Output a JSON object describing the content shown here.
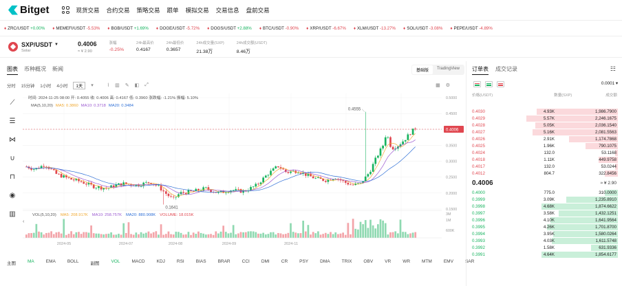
{
  "brand": {
    "name": "Bitget"
  },
  "nav": [
    "现货交易",
    "合约交易",
    "策略交易",
    "跟单",
    "模拟交易",
    "交易信息",
    "盘前交易"
  ],
  "tickers": [
    {
      "sym": "ZRC/USDT",
      "chg": "+0.00%",
      "dir": "up"
    },
    {
      "sym": "MEMEFI/USDT",
      "chg": "-5.53%",
      "dir": "down"
    },
    {
      "sym": "BGB/USDT",
      "chg": "+1.69%",
      "dir": "up"
    },
    {
      "sym": "DOGE/USDT",
      "chg": "-5.72%",
      "dir": "down"
    },
    {
      "sym": "DOGS/USDT",
      "chg": "+2.88%",
      "dir": "up"
    },
    {
      "sym": "BTC/USDT",
      "chg": "-0.90%",
      "dir": "down"
    },
    {
      "sym": "XRP/USDT",
      "chg": "-6.67%",
      "dir": "down"
    },
    {
      "sym": "XLM/USDT",
      "chg": "-13.27%",
      "dir": "down"
    },
    {
      "sym": "SOL/USDT",
      "chg": "-3.08%",
      "dir": "down"
    },
    {
      "sym": "PEPE/USDT",
      "chg": "-4.89%",
      "dir": "down"
    }
  ],
  "pair": {
    "name": "SXP/USDT",
    "sub": "Solar",
    "price": "0.4006",
    "fiat": "≈ ¥ 2.90",
    "stats": [
      {
        "lbl": "涨幅",
        "val": "-0.25%",
        "cls": "down"
      },
      {
        "lbl": "24h最高价",
        "val": "0.4167",
        "cls": ""
      },
      {
        "lbl": "24h最低价",
        "val": "0.3657",
        "cls": ""
      },
      {
        "lbl": "24h成交量(SXP)",
        "val": "21.38万",
        "cls": ""
      },
      {
        "lbl": "24h成交额(USDT)",
        "val": "8.46万",
        "cls": ""
      }
    ]
  },
  "chart_tabs": [
    "图表",
    "币种概况",
    "新闻"
  ],
  "view_switch": [
    "基础版",
    "TradingView"
  ],
  "intervals": [
    "分时",
    "15分钟",
    "1小时",
    "4小时",
    "1天"
  ],
  "selected_interval": "1天",
  "ohlc_text": "时间: 2024-11-25 08:00   开: 0.4055   收: 0.4006   高: 0.4167   低: 0.3960   涨跌幅: -1.21%   振幅: 5.10%",
  "ma_line": {
    "label": "MA(5,10,20)",
    "ma5": "MA5: 0.3860",
    "ma10": "MA10: 0.3718",
    "ma20": "MA20: 0.3484"
  },
  "vol_line": {
    "label": "VOL(5,10,20)",
    "ma5": "MA5: 208.917K",
    "ma10": "MA10: 258.757K",
    "ma20": "MA20: 880.908K",
    "vol": "VOLUME: 18.015K"
  },
  "annotations": {
    "high": "0.4555",
    "low": "0.1641",
    "current": "0.4006"
  },
  "price_axis": [
    "0.5000",
    "0.4500",
    "0.4000",
    "0.3500",
    "0.3000",
    "0.2500",
    "0.2000",
    "0.1500"
  ],
  "vol_axis": [
    "3M",
    "1M",
    "600K"
  ],
  "date_axis": [
    "2024-05",
    "2024-07",
    "2024-08",
    "2024-09",
    "2024-11"
  ],
  "indicators": [
    "主图",
    "MA",
    "EMA",
    "BOLL",
    "副图",
    "VOL",
    "MACD",
    "KDJ",
    "RSI",
    "BIAS",
    "BRAR",
    "CCI",
    "DMI",
    "CR",
    "PSY",
    "DMA",
    "TRIX",
    "OBV",
    "VR",
    "WR",
    "MTM",
    "EMV",
    "SAR"
  ],
  "order_tabs": [
    "订单表",
    "成交记录"
  ],
  "precision": "0.0001",
  "ob_head": [
    "价格(USDT)",
    "数量(SXP)",
    "成交额"
  ],
  "asks": [
    {
      "p": "0.4030",
      "q": "4.93K",
      "t": "1,986.7900",
      "w": 0.55
    },
    {
      "p": "0.4029",
      "q": "5.57K",
      "t": "2,246.1675",
      "w": 0.62
    },
    {
      "p": "0.4028",
      "q": "5.05K",
      "t": "2,036.1540",
      "w": 0.56
    },
    {
      "p": "0.4027",
      "q": "5.16K",
      "t": "2,081.5563",
      "w": 0.58
    },
    {
      "p": "0.4026",
      "q": "2.91K",
      "t": "1,174.7868",
      "w": 0.33
    },
    {
      "p": "0.4025",
      "q": "1.96K",
      "t": "790.1075",
      "w": 0.22
    },
    {
      "p": "0.4024",
      "q": "132.0",
      "t": "53.1168",
      "w": 0.02
    },
    {
      "p": "0.4018",
      "q": "1.11K",
      "t": "449.9758",
      "w": 0.13
    },
    {
      "p": "0.4017",
      "q": "132.0",
      "t": "53.0244",
      "w": 0.02
    },
    {
      "p": "0.4012",
      "q": "804.7",
      "t": "322.8456",
      "w": 0.09
    }
  ],
  "mid": {
    "price": "0.4006",
    "fiat": "≈ ¥ 2.90"
  },
  "bids": [
    {
      "p": "0.4000",
      "q": "775.0",
      "t": "310.0000",
      "w": 0.09
    },
    {
      "p": "0.3999",
      "q": "3.09K",
      "t": "1,235.8910",
      "w": 0.35
    },
    {
      "p": "0.3998",
      "q": "4.68K",
      "t": "1,874.6622",
      "w": 0.52
    },
    {
      "p": "0.3997",
      "q": "3.58K",
      "t": "1,432.1251",
      "w": 0.4
    },
    {
      "p": "0.3996",
      "q": "4.10K",
      "t": "1,641.9564",
      "w": 0.46
    },
    {
      "p": "0.3995",
      "q": "4.26K",
      "t": "1,701.8700",
      "w": 0.48
    },
    {
      "p": "0.3994",
      "q": "3.95K",
      "t": "1,580.0264",
      "w": 0.44
    },
    {
      "p": "0.3993",
      "q": "4.03K",
      "t": "1,611.5748",
      "w": 0.45
    },
    {
      "p": "0.3992",
      "q": "1.58K",
      "t": "631.9336",
      "w": 0.18
    },
    {
      "p": "0.3991",
      "q": "4.64K",
      "t": "1,854.6177",
      "w": 0.52
    }
  ],
  "colors": {
    "up": "#16b35e",
    "down": "#e0464f",
    "ma5": "#f0a830",
    "ma10": "#9b59d0",
    "ma20": "#2e6fd6",
    "brand": "#00c1c7"
  }
}
